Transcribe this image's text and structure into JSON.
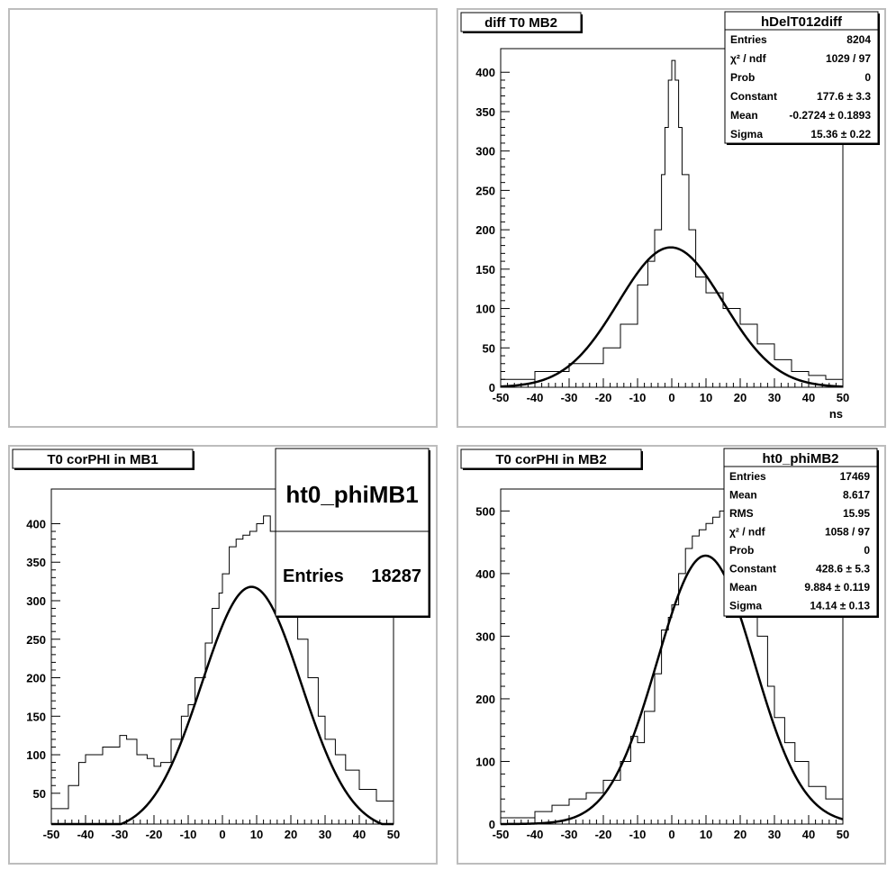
{
  "pads": {
    "top_left": {},
    "top_right": {
      "title": "diff T0 MB2",
      "xaxis_label": "ns",
      "stats": {
        "name": "hDelT012diff",
        "rows": [
          {
            "label": "Entries",
            "value": "8204"
          },
          {
            "label": "χ² / ndf",
            "value": "1029 / 97"
          },
          {
            "label": "Prob",
            "value": "0"
          },
          {
            "label": "Constant",
            "value": "177.6 ± 3.3"
          },
          {
            "label": "Mean",
            "value": "-0.2724 ± 0.1893"
          },
          {
            "label": "Sigma",
            "value": "15.36 ± 0.22"
          }
        ]
      }
    },
    "bottom_left": {
      "title": "T0 corPHI in MB1",
      "stats": {
        "name": "ht0_phiMB1",
        "rows": [
          {
            "label": "Entries",
            "value": "18287"
          }
        ]
      }
    },
    "bottom_right": {
      "title": "T0 corPHI in MB2",
      "stats": {
        "name": "ht0_phiMB2",
        "rows": [
          {
            "label": "Entries",
            "value": "17469"
          },
          {
            "label": "Mean",
            "value": "8.617"
          },
          {
            "label": "RMS",
            "value": "15.95"
          },
          {
            "label": "χ² / ndf",
            "value": "1058 / 97"
          },
          {
            "label": "Prob",
            "value": "0"
          },
          {
            "label": "Constant",
            "value": "428.6 ± 5.3"
          },
          {
            "label": "Mean",
            "value": "9.884 ± 0.119"
          },
          {
            "label": "Sigma",
            "value": "14.14 ± 0.13"
          }
        ]
      }
    }
  },
  "chart_data": [
    {
      "id": "top_right",
      "type": "histogram",
      "title": "diff T0 MB2",
      "xlabel": "ns",
      "ylabel": "",
      "xlim": [
        -50,
        50
      ],
      "ylim": [
        0,
        430
      ],
      "xticks": [
        -50,
        -40,
        -30,
        -20,
        -10,
        0,
        10,
        20,
        30,
        40,
        50
      ],
      "yticks": [
        0,
        50,
        100,
        150,
        200,
        250,
        300,
        350,
        400
      ],
      "fit": {
        "type": "gaus",
        "constant": 177.6,
        "mean": -0.2724,
        "sigma": 15.36
      },
      "histogram": {
        "x": [
          -50,
          -40,
          -30,
          -20,
          -15,
          -10,
          -7,
          -5,
          -3,
          -2,
          -1,
          0,
          1,
          2,
          3,
          5,
          7,
          10,
          15,
          20,
          25,
          30,
          35,
          40,
          45,
          50
        ],
        "y": [
          10,
          20,
          30,
          50,
          80,
          130,
          160,
          200,
          270,
          330,
          390,
          415,
          390,
          330,
          270,
          200,
          140,
          120,
          100,
          80,
          55,
          35,
          20,
          15,
          10,
          5
        ]
      }
    },
    {
      "id": "bottom_left",
      "type": "histogram",
      "title": "T0 corPHI in MB1",
      "xlabel": "",
      "ylabel": "",
      "xlim": [
        -50,
        50
      ],
      "ylim": [
        10,
        445
      ],
      "xticks": [
        -50,
        -40,
        -30,
        -20,
        -10,
        0,
        10,
        20,
        30,
        40,
        50
      ],
      "yticks": [
        50,
        100,
        150,
        200,
        250,
        300,
        350,
        400
      ],
      "fit": {
        "type": "gaus",
        "constant": 318,
        "mean": 8.5,
        "sigma": 14.5
      },
      "histogram": {
        "x": [
          -50,
          -45,
          -42,
          -40,
          -35,
          -30,
          -28,
          -25,
          -22,
          -20,
          -18,
          -15,
          -12,
          -10,
          -8,
          -5,
          -3,
          -1,
          0,
          2,
          4,
          6,
          8,
          10,
          12,
          14,
          16,
          18,
          20,
          22,
          25,
          28,
          30,
          33,
          36,
          40,
          45,
          50
        ],
        "y": [
          30,
          60,
          90,
          100,
          110,
          125,
          120,
          100,
          95,
          85,
          90,
          120,
          150,
          165,
          200,
          245,
          290,
          310,
          335,
          370,
          380,
          385,
          390,
          400,
          410,
          390,
          380,
          320,
          280,
          250,
          200,
          150,
          120,
          100,
          80,
          55,
          40,
          30
        ]
      }
    },
    {
      "id": "bottom_right",
      "type": "histogram",
      "title": "T0 corPHI in MB2",
      "xlabel": "",
      "ylabel": "",
      "xlim": [
        -50,
        50
      ],
      "ylim": [
        0,
        535
      ],
      "xticks": [
        -50,
        -40,
        -30,
        -20,
        -10,
        0,
        10,
        20,
        30,
        40,
        50
      ],
      "yticks": [
        0,
        100,
        200,
        300,
        400,
        500
      ],
      "fit": {
        "type": "gaus",
        "constant": 428.6,
        "mean": 9.884,
        "sigma": 14.14
      },
      "histogram": {
        "x": [
          -50,
          -40,
          -35,
          -30,
          -25,
          -20,
          -15,
          -12,
          -10,
          -8,
          -5,
          -3,
          -1,
          0,
          2,
          4,
          6,
          8,
          10,
          12,
          14,
          16,
          18,
          20,
          22,
          25,
          28,
          30,
          33,
          36,
          40,
          45,
          50
        ],
        "y": [
          10,
          20,
          30,
          40,
          50,
          70,
          100,
          140,
          130,
          180,
          240,
          310,
          330,
          350,
          400,
          440,
          460,
          470,
          480,
          490,
          500,
          505,
          480,
          440,
          380,
          300,
          220,
          170,
          130,
          100,
          60,
          40,
          30
        ]
      }
    }
  ]
}
